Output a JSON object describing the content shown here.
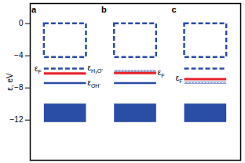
{
  "chart_data": {
    "type": "energy_levels",
    "y_label": "ε, eV",
    "ylim": [
      -17,
      2.5
    ],
    "yticks": [
      0,
      -4,
      -8,
      -12
    ],
    "panels": [
      {
        "name": "a",
        "conduction_band": {
          "range": [
            -4.2,
            0
          ],
          "color": "#2a4da5",
          "line_style": "dashed"
        },
        "valence_band": {
          "range": [
            -12.3,
            -10
          ],
          "color": "#2a4da5"
        },
        "levels": [
          {
            "energy": -5.6,
            "color": "#2a4da5",
            "line_style": "dashed",
            "label": {
              "symbol": "ε",
              "subscript": "H₃O⁺"
            }
          },
          {
            "energy": -6.2,
            "color": "#e8202a",
            "line_style": "solid",
            "label": {
              "symbol": "ε",
              "subscript": "F"
            }
          },
          {
            "energy": -7.4,
            "color": "#2a4da5",
            "line_style": "solid",
            "label": {
              "symbol": "ε",
              "subscript": "OH⁻"
            }
          }
        ]
      },
      {
        "name": "b",
        "conduction_band": {
          "range": [
            -4.2,
            0
          ],
          "color": "#2a4da5",
          "line_style": "dashed"
        },
        "valence_band": {
          "range": [
            -12.3,
            -10
          ],
          "color": "#2a4da5"
        },
        "levels": [
          {
            "energy": -5.9,
            "color": "#2a4da5",
            "line_style": "dotted"
          },
          {
            "energy": -6.15,
            "color": "#e8202a",
            "line_style": "solid",
            "label": {
              "symbol": "ε",
              "subscript": "F"
            }
          },
          {
            "energy": -7.4,
            "color": "#2a4da5",
            "line_style": "solid"
          }
        ]
      },
      {
        "name": "c",
        "conduction_band": {
          "range": [
            -4.2,
            0
          ],
          "color": "#2a4da5",
          "line_style": "dashed"
        },
        "valence_band": {
          "range": [
            -12.3,
            -10
          ],
          "color": "#2a4da5"
        },
        "levels": [
          {
            "energy": -5.6,
            "color": "#2a4da5",
            "line_style": "dashed"
          },
          {
            "energy": -6.9,
            "color": "#e8202a",
            "line_style": "solid",
            "label": {
              "symbol": "ε",
              "subscript": "F"
            }
          },
          {
            "energy": -7.35,
            "color": "#2a4da5",
            "line_style": "dotted"
          }
        ]
      }
    ]
  }
}
